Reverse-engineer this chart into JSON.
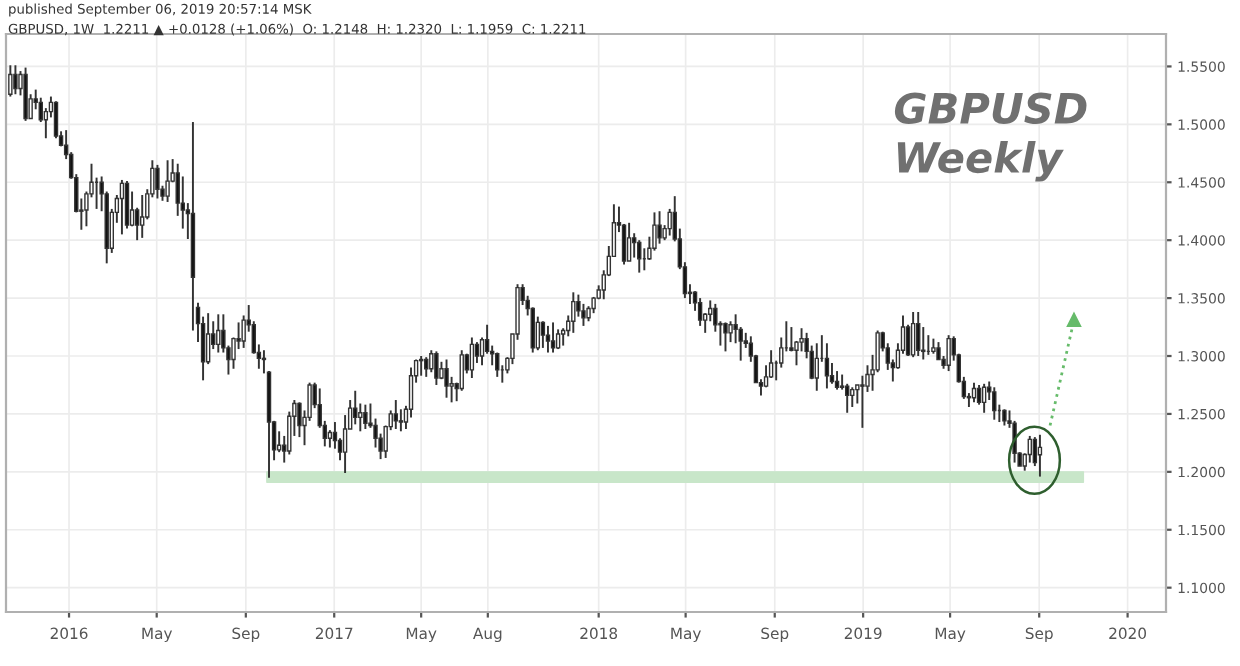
{
  "chart_data": {
    "type": "candlestick",
    "title": "GBPUSD",
    "subtitle": "Weekly",
    "annotations": [
      "published September 06, 2019 20:57:14 MSK",
      "GBPUSD, 1W  1.2211 ▲ +0.0128 (+1.06%)  O: 1.2148  H: 1.2320  L: 1.1959  C: 1.2211"
    ],
    "xlim": [
      "2015-10-06",
      "2020-02-23"
    ],
    "ylim": [
      1.079,
      1.578
    ],
    "xticks": [
      {
        "value": "2016-01-01",
        "label": "2016"
      },
      {
        "value": "2016-05-01",
        "label": "May"
      },
      {
        "value": "2016-09-01",
        "label": "Sep"
      },
      {
        "value": "2017-01-01",
        "label": "2017"
      },
      {
        "value": "2017-05-01",
        "label": "May"
      },
      {
        "value": "2017-08-01",
        "label": "Aug"
      },
      {
        "value": "2018-01-01",
        "label": "2018"
      },
      {
        "value": "2018-05-01",
        "label": "May"
      },
      {
        "value": "2018-09-01",
        "label": "Sep"
      },
      {
        "value": "2019-01-01",
        "label": "2019"
      },
      {
        "value": "2019-05-01",
        "label": "May"
      },
      {
        "value": "2019-09-01",
        "label": "Sep"
      },
      {
        "value": "2020-01-01",
        "label": "2020"
      }
    ],
    "yticks": [
      {
        "value": 1.1,
        "label": "1.1000"
      },
      {
        "value": 1.15,
        "label": "1.1500"
      },
      {
        "value": 1.2,
        "label": "1.2000"
      },
      {
        "value": 1.25,
        "label": "1.2500"
      },
      {
        "value": 1.3,
        "label": "1.3000"
      },
      {
        "value": 1.35,
        "label": "1.3500"
      },
      {
        "value": 1.4,
        "label": "1.4000"
      },
      {
        "value": 1.45,
        "label": "1.4500"
      },
      {
        "value": 1.5,
        "label": "1.5000"
      },
      {
        "value": 1.55,
        "label": "1.5500"
      }
    ],
    "grid": true,
    "series": [
      {
        "type": "line",
        "color": "#c8e6c9",
        "x": [
          "2016-09-30",
          "2019-11-01"
        ],
        "values": [
          null,
          null
        ],
        "lower": [
          1.191,
          1.191
        ],
        "upper": [
          1.2,
          1.2
        ]
      },
      {
        "x": [
          "2015-10-12",
          "2015-10-19",
          "2015-10-26",
          "2015-11-02",
          "2015-11-09",
          "2015-11-16",
          "2015-11-23",
          "2015-11-30",
          "2015-12-07",
          "2015-12-14",
          "2015-12-21",
          "2015-12-28",
          "2016-01-04",
          "2016-01-11",
          "2016-01-18",
          "2016-01-25",
          "2016-02-01",
          "2016-02-08",
          "2016-02-15",
          "2016-02-22",
          "2016-02-29",
          "2016-03-07",
          "2016-03-14",
          "2016-03-21",
          "2016-03-28",
          "2016-04-04",
          "2016-04-11",
          "2016-04-18",
          "2016-04-25",
          "2016-05-02",
          "2016-05-09",
          "2016-05-16",
          "2016-05-23",
          "2016-05-30",
          "2016-06-06",
          "2016-06-13",
          "2016-06-20",
          "2016-06-27",
          "2016-07-04",
          "2016-07-11",
          "2016-07-18",
          "2016-07-25",
          "2016-08-01",
          "2016-08-08",
          "2016-08-15",
          "2016-08-22",
          "2016-08-29",
          "2016-09-05",
          "2016-09-12",
          "2016-09-19",
          "2016-09-26",
          "2016-10-03",
          "2016-10-10",
          "2016-10-17",
          "2016-10-24",
          "2016-10-31",
          "2016-11-07",
          "2016-11-14",
          "2016-11-21",
          "2016-11-28",
          "2016-12-05",
          "2016-12-12",
          "2016-12-19",
          "2016-12-26",
          "2017-01-02",
          "2017-01-09",
          "2017-01-16",
          "2017-01-23",
          "2017-01-30",
          "2017-02-06",
          "2017-02-13",
          "2017-02-20",
          "2017-02-27",
          "2017-03-06",
          "2017-03-13",
          "2017-03-20",
          "2017-03-27",
          "2017-04-03",
          "2017-04-10",
          "2017-04-17",
          "2017-04-24",
          "2017-05-01",
          "2017-05-08",
          "2017-05-15",
          "2017-05-22",
          "2017-05-29",
          "2017-06-05",
          "2017-06-12",
          "2017-06-19",
          "2017-06-26",
          "2017-07-03",
          "2017-07-10",
          "2017-07-17",
          "2017-07-24",
          "2017-07-31",
          "2017-08-07",
          "2017-08-14",
          "2017-08-21",
          "2017-08-28",
          "2017-09-04",
          "2017-09-11",
          "2017-09-18",
          "2017-09-25",
          "2017-10-02",
          "2017-10-09",
          "2017-10-16",
          "2017-10-23",
          "2017-10-30",
          "2017-11-06",
          "2017-11-13",
          "2017-11-20",
          "2017-11-27",
          "2017-12-04",
          "2017-12-11",
          "2017-12-18",
          "2017-12-25",
          "2018-01-01",
          "2018-01-08",
          "2018-01-15",
          "2018-01-22",
          "2018-01-29",
          "2018-02-05",
          "2018-02-12",
          "2018-02-19",
          "2018-02-26",
          "2018-03-05",
          "2018-03-12",
          "2018-03-19",
          "2018-03-26",
          "2018-04-02",
          "2018-04-09",
          "2018-04-16",
          "2018-04-23",
          "2018-04-30",
          "2018-05-07",
          "2018-05-14",
          "2018-05-21",
          "2018-05-28",
          "2018-06-04",
          "2018-06-11",
          "2018-06-18",
          "2018-06-25",
          "2018-07-02",
          "2018-07-09",
          "2018-07-16",
          "2018-07-23",
          "2018-07-30",
          "2018-08-06",
          "2018-08-13",
          "2018-08-20",
          "2018-08-27",
          "2018-09-03",
          "2018-09-10",
          "2018-09-17",
          "2018-09-24",
          "2018-10-01",
          "2018-10-08",
          "2018-10-15",
          "2018-10-22",
          "2018-10-29",
          "2018-11-05",
          "2018-11-12",
          "2018-11-19",
          "2018-11-26",
          "2018-12-03",
          "2018-12-10",
          "2018-12-17",
          "2018-12-24",
          "2018-12-31",
          "2019-01-07",
          "2019-01-14",
          "2019-01-21",
          "2019-01-28",
          "2019-02-04",
          "2019-02-11",
          "2019-02-18",
          "2019-02-25",
          "2019-03-04",
          "2019-03-11",
          "2019-03-18",
          "2019-03-25",
          "2019-04-01",
          "2019-04-08",
          "2019-04-15",
          "2019-04-22",
          "2019-04-29",
          "2019-05-06",
          "2019-05-13",
          "2019-05-20",
          "2019-05-27",
          "2019-06-03",
          "2019-06-10",
          "2019-06-17",
          "2019-06-24",
          "2019-07-01",
          "2019-07-08",
          "2019-07-15",
          "2019-07-22",
          "2019-07-29",
          "2019-08-05",
          "2019-08-12",
          "2019-08-19",
          "2019-08-26",
          "2019-09-02"
        ],
        "ohlc": [
          [
            1.526,
            1.551,
            1.524,
            1.543
          ],
          [
            1.543,
            1.551,
            1.526,
            1.531
          ],
          [
            1.531,
            1.546,
            1.525,
            1.543
          ],
          [
            1.543,
            1.549,
            1.503,
            1.505
          ],
          [
            1.505,
            1.526,
            1.505,
            1.522
          ],
          [
            1.522,
            1.53,
            1.513,
            1.519
          ],
          [
            1.519,
            1.523,
            1.502,
            1.504
          ],
          [
            1.504,
            1.514,
            1.488,
            1.511
          ],
          [
            1.511,
            1.524,
            1.506,
            1.519
          ],
          [
            1.519,
            1.52,
            1.488,
            1.49
          ],
          [
            1.49,
            1.494,
            1.481,
            1.482
          ],
          [
            1.482,
            1.495,
            1.47,
            1.474
          ],
          [
            1.474,
            1.476,
            1.453,
            1.454
          ],
          [
            1.454,
            1.457,
            1.424,
            1.425
          ],
          [
            1.425,
            1.436,
            1.409,
            1.426
          ],
          [
            1.426,
            1.442,
            1.412,
            1.44
          ],
          [
            1.44,
            1.466,
            1.437,
            1.45
          ],
          [
            1.45,
            1.454,
            1.427,
            1.45
          ],
          [
            1.45,
            1.455,
            1.425,
            1.44
          ],
          [
            1.44,
            1.442,
            1.38,
            1.393
          ],
          [
            1.393,
            1.427,
            1.389,
            1.424
          ],
          [
            1.424,
            1.439,
            1.415,
            1.436
          ],
          [
            1.436,
            1.452,
            1.405,
            1.449
          ],
          [
            1.449,
            1.451,
            1.41,
            1.413
          ],
          [
            1.413,
            1.442,
            1.412,
            1.426
          ],
          [
            1.426,
            1.428,
            1.4,
            1.413
          ],
          [
            1.413,
            1.439,
            1.402,
            1.42
          ],
          [
            1.42,
            1.444,
            1.418,
            1.44
          ],
          [
            1.44,
            1.469,
            1.437,
            1.462
          ],
          [
            1.462,
            1.465,
            1.436,
            1.444
          ],
          [
            1.444,
            1.447,
            1.434,
            1.438
          ],
          [
            1.438,
            1.469,
            1.433,
            1.451
          ],
          [
            1.451,
            1.47,
            1.45,
            1.458
          ],
          [
            1.458,
            1.466,
            1.421,
            1.432
          ],
          [
            1.432,
            1.455,
            1.41,
            1.426
          ],
          [
            1.426,
            1.432,
            1.401,
            1.423
          ],
          [
            1.423,
            1.502,
            1.322,
            1.368
          ],
          [
            1.342,
            1.346,
            1.312,
            1.328
          ],
          [
            1.328,
            1.334,
            1.279,
            1.295
          ],
          [
            1.295,
            1.337,
            1.293,
            1.319
          ],
          [
            1.319,
            1.33,
            1.306,
            1.31
          ],
          [
            1.31,
            1.336,
            1.303,
            1.322
          ],
          [
            1.322,
            1.336,
            1.303,
            1.307
          ],
          [
            1.307,
            1.309,
            1.284,
            1.297
          ],
          [
            1.297,
            1.316,
            1.289,
            1.315
          ],
          [
            1.315,
            1.329,
            1.306,
            1.313
          ],
          [
            1.313,
            1.335,
            1.307,
            1.331
          ],
          [
            1.331,
            1.344,
            1.321,
            1.327
          ],
          [
            1.327,
            1.33,
            1.302,
            1.303
          ],
          [
            1.303,
            1.31,
            1.289,
            1.298
          ],
          [
            1.298,
            1.305,
            1.285,
            1.297
          ],
          [
            1.286,
            1.287,
            1.195,
            1.243
          ],
          [
            1.243,
            1.244,
            1.21,
            1.219
          ],
          [
            1.219,
            1.235,
            1.217,
            1.223
          ],
          [
            1.223,
            1.231,
            1.208,
            1.218
          ],
          [
            1.218,
            1.252,
            1.215,
            1.248
          ],
          [
            1.248,
            1.262,
            1.231,
            1.259
          ],
          [
            1.259,
            1.26,
            1.23,
            1.24
          ],
          [
            1.24,
            1.253,
            1.223,
            1.247
          ],
          [
            1.247,
            1.277,
            1.244,
            1.275
          ],
          [
            1.275,
            1.277,
            1.255,
            1.258
          ],
          [
            1.258,
            1.272,
            1.238,
            1.24
          ],
          [
            1.24,
            1.244,
            1.222,
            1.229
          ],
          [
            1.229,
            1.236,
            1.221,
            1.234
          ],
          [
            1.234,
            1.243,
            1.22,
            1.227
          ],
          [
            1.227,
            1.229,
            1.21,
            1.217
          ],
          [
            1.217,
            1.249,
            1.199,
            1.237
          ],
          [
            1.237,
            1.262,
            1.237,
            1.255
          ],
          [
            1.255,
            1.27,
            1.241,
            1.247
          ],
          [
            1.247,
            1.259,
            1.235,
            1.251
          ],
          [
            1.251,
            1.258,
            1.237,
            1.242
          ],
          [
            1.242,
            1.259,
            1.238,
            1.24
          ],
          [
            1.24,
            1.246,
            1.221,
            1.229
          ],
          [
            1.229,
            1.233,
            1.211,
            1.218
          ],
          [
            1.218,
            1.24,
            1.212,
            1.239
          ],
          [
            1.239,
            1.253,
            1.236,
            1.25
          ],
          [
            1.25,
            1.262,
            1.237,
            1.244
          ],
          [
            1.244,
            1.254,
            1.235,
            1.243
          ],
          [
            1.243,
            1.257,
            1.237,
            1.254
          ],
          [
            1.254,
            1.29,
            1.247,
            1.283
          ],
          [
            1.283,
            1.297,
            1.277,
            1.296
          ],
          [
            1.296,
            1.3,
            1.283,
            1.297
          ],
          [
            1.297,
            1.299,
            1.282,
            1.289
          ],
          [
            1.289,
            1.305,
            1.286,
            1.302
          ],
          [
            1.302,
            1.304,
            1.275,
            1.281
          ],
          [
            1.281,
            1.295,
            1.28,
            1.289
          ],
          [
            1.289,
            1.297,
            1.264,
            1.274
          ],
          [
            1.274,
            1.282,
            1.26,
            1.276
          ],
          [
            1.276,
            1.277,
            1.261,
            1.272
          ],
          [
            1.272,
            1.305,
            1.27,
            1.301
          ],
          [
            1.301,
            1.302,
            1.285,
            1.288
          ],
          [
            1.288,
            1.316,
            1.281,
            1.31
          ],
          [
            1.31,
            1.312,
            1.294,
            1.3
          ],
          [
            1.3,
            1.316,
            1.292,
            1.314
          ],
          [
            1.314,
            1.327,
            1.302,
            1.304
          ],
          [
            1.304,
            1.309,
            1.292,
            1.302
          ],
          [
            1.302,
            1.303,
            1.282,
            1.288
          ],
          [
            1.288,
            1.292,
            1.277,
            1.288
          ],
          [
            1.288,
            1.299,
            1.285,
            1.298
          ],
          [
            1.298,
            1.319,
            1.293,
            1.319
          ],
          [
            1.319,
            1.362,
            1.314,
            1.359
          ],
          [
            1.359,
            1.362,
            1.344,
            1.348
          ],
          [
            1.348,
            1.352,
            1.335,
            1.341
          ],
          [
            1.341,
            1.342,
            1.303,
            1.307
          ],
          [
            1.307,
            1.334,
            1.305,
            1.329
          ],
          [
            1.329,
            1.33,
            1.307,
            1.318
          ],
          [
            1.318,
            1.326,
            1.303,
            1.313
          ],
          [
            1.313,
            1.329,
            1.303,
            1.307
          ],
          [
            1.307,
            1.323,
            1.306,
            1.319
          ],
          [
            1.319,
            1.324,
            1.309,
            1.322
          ],
          [
            1.322,
            1.335,
            1.317,
            1.33
          ],
          [
            1.33,
            1.355,
            1.32,
            1.347
          ],
          [
            1.347,
            1.353,
            1.334,
            1.339
          ],
          [
            1.339,
            1.345,
            1.326,
            1.333
          ],
          [
            1.333,
            1.343,
            1.33,
            1.341
          ],
          [
            1.341,
            1.351,
            1.337,
            1.35
          ],
          [
            1.35,
            1.361,
            1.349,
            1.357
          ],
          [
            1.357,
            1.374,
            1.349,
            1.37
          ],
          [
            1.37,
            1.395,
            1.369,
            1.386
          ],
          [
            1.386,
            1.431,
            1.386,
            1.415
          ],
          [
            1.415,
            1.429,
            1.407,
            1.413
          ],
          [
            1.413,
            1.414,
            1.379,
            1.382
          ],
          [
            1.382,
            1.415,
            1.382,
            1.402
          ],
          [
            1.402,
            1.406,
            1.385,
            1.398
          ],
          [
            1.398,
            1.4,
            1.372,
            1.384
          ],
          [
            1.384,
            1.393,
            1.374,
            1.384
          ],
          [
            1.384,
            1.403,
            1.383,
            1.393
          ],
          [
            1.393,
            1.424,
            1.391,
            1.413
          ],
          [
            1.413,
            1.425,
            1.397,
            1.402
          ],
          [
            1.402,
            1.413,
            1.4,
            1.41
          ],
          [
            1.41,
            1.427,
            1.404,
            1.424
          ],
          [
            1.424,
            1.438,
            1.399,
            1.401
          ],
          [
            1.401,
            1.41,
            1.375,
            1.377
          ],
          [
            1.377,
            1.381,
            1.35,
            1.354
          ],
          [
            1.354,
            1.362,
            1.345,
            1.355
          ],
          [
            1.355,
            1.356,
            1.339,
            1.346
          ],
          [
            1.346,
            1.35,
            1.326,
            1.331
          ],
          [
            1.331,
            1.337,
            1.32,
            1.336
          ],
          [
            1.336,
            1.348,
            1.33,
            1.341
          ],
          [
            1.341,
            1.345,
            1.321,
            1.327
          ],
          [
            1.327,
            1.33,
            1.309,
            1.328
          ],
          [
            1.328,
            1.329,
            1.304,
            1.32
          ],
          [
            1.32,
            1.33,
            1.312,
            1.327
          ],
          [
            1.327,
            1.336,
            1.311,
            1.323
          ],
          [
            1.323,
            1.325,
            1.296,
            1.313
          ],
          [
            1.313,
            1.32,
            1.307,
            1.311
          ],
          [
            1.311,
            1.317,
            1.295,
            1.3
          ],
          [
            1.3,
            1.301,
            1.277,
            1.277
          ],
          [
            1.277,
            1.28,
            1.266,
            1.274
          ],
          [
            1.274,
            1.292,
            1.273,
            1.282
          ],
          [
            1.282,
            1.305,
            1.281,
            1.294
          ],
          [
            1.294,
            1.296,
            1.279,
            1.294
          ],
          [
            1.294,
            1.316,
            1.29,
            1.307
          ],
          [
            1.307,
            1.33,
            1.304,
            1.307
          ],
          [
            1.307,
            1.325,
            1.304,
            1.305
          ],
          [
            1.305,
            1.313,
            1.292,
            1.312
          ],
          [
            1.312,
            1.324,
            1.304,
            1.315
          ],
          [
            1.315,
            1.32,
            1.298,
            1.304
          ],
          [
            1.304,
            1.309,
            1.28,
            1.281
          ],
          [
            1.281,
            1.311,
            1.27,
            1.298
          ],
          [
            1.298,
            1.318,
            1.295,
            1.298
          ],
          [
            1.298,
            1.311,
            1.272,
            1.283
          ],
          [
            1.283,
            1.294,
            1.276,
            1.278
          ],
          [
            1.278,
            1.287,
            1.271,
            1.273
          ],
          [
            1.273,
            1.284,
            1.271,
            1.274
          ],
          [
            1.274,
            1.276,
            1.251,
            1.266
          ],
          [
            1.266,
            1.273,
            1.256,
            1.271
          ],
          [
            1.271,
            1.275,
            1.259,
            1.275
          ],
          [
            1.275,
            1.283,
            1.238,
            1.274
          ],
          [
            1.274,
            1.292,
            1.269,
            1.284
          ],
          [
            1.284,
            1.301,
            1.27,
            1.288
          ],
          [
            1.288,
            1.322,
            1.286,
            1.32
          ],
          [
            1.32,
            1.321,
            1.304,
            1.307
          ],
          [
            1.307,
            1.311,
            1.288,
            1.294
          ],
          [
            1.294,
            1.297,
            1.278,
            1.29
          ],
          [
            1.29,
            1.311,
            1.289,
            1.305
          ],
          [
            1.305,
            1.335,
            1.302,
            1.325
          ],
          [
            1.325,
            1.327,
            1.3,
            1.301
          ],
          [
            1.301,
            1.338,
            1.299,
            1.328
          ],
          [
            1.328,
            1.338,
            1.3,
            1.305
          ],
          [
            1.305,
            1.325,
            1.297,
            1.304
          ],
          [
            1.304,
            1.318,
            1.301,
            1.304
          ],
          [
            1.304,
            1.315,
            1.302,
            1.307
          ],
          [
            1.307,
            1.312,
            1.297,
            1.297
          ],
          [
            1.297,
            1.3,
            1.289,
            1.292
          ],
          [
            1.292,
            1.318,
            1.287,
            1.315
          ],
          [
            1.315,
            1.317,
            1.296,
            1.301
          ],
          [
            1.301,
            1.302,
            1.277,
            1.278
          ],
          [
            1.278,
            1.282,
            1.263,
            1.265
          ],
          [
            1.265,
            1.268,
            1.256,
            1.264
          ],
          [
            1.264,
            1.277,
            1.26,
            1.272
          ],
          [
            1.272,
            1.275,
            1.258,
            1.26
          ],
          [
            1.26,
            1.276,
            1.251,
            1.273
          ],
          [
            1.273,
            1.278,
            1.262,
            1.269
          ],
          [
            1.269,
            1.273,
            1.245,
            1.253
          ],
          [
            1.253,
            1.258,
            1.243,
            1.253
          ],
          [
            1.253,
            1.254,
            1.24,
            1.244
          ],
          [
            1.244,
            1.253,
            1.238,
            1.242
          ],
          [
            1.242,
            1.244,
            1.208,
            1.216
          ],
          [
            1.216,
            1.217,
            1.205,
            1.205
          ],
          [
            1.205,
            1.216,
            1.201,
            1.215
          ],
          [
            1.215,
            1.231,
            1.208,
            1.228
          ],
          [
            1.228,
            1.23,
            1.205,
            1.208
          ],
          [
            1.2148,
            1.232,
            1.1959,
            1.2211
          ]
        ]
      },
      {
        "type": "line",
        "color": "#66bb6a",
        "line_style": "dotted",
        "marker": "triangle",
        "x": [
          "2019-09-16",
          "2019-10-19"
        ],
        "values": [
          1.24,
          1.331
        ]
      }
    ]
  }
}
